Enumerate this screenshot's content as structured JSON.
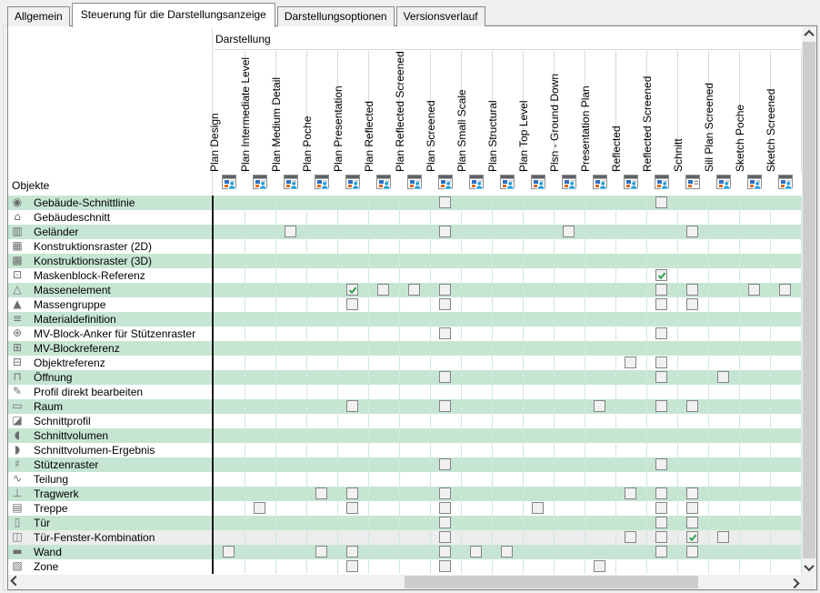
{
  "tabs": [
    {
      "label": "Allgemein",
      "active": false
    },
    {
      "label": "Steuerung für die Darstellungsanzeige",
      "active": true
    },
    {
      "label": "Darstellungsoptionen",
      "active": false
    },
    {
      "label": "Versionsverlauf",
      "active": false
    }
  ],
  "table": {
    "group_label": "Darstellung",
    "objects_label": "Objekte",
    "columns": [
      {
        "label": "Plan Design",
        "icon": "display-representation-icon",
        "has_person": true
      },
      {
        "label": "Plan Intermediate Level",
        "icon": "display-representation-icon",
        "has_person": true
      },
      {
        "label": "Plan Medium Detail",
        "icon": "display-representation-icon",
        "has_person": true
      },
      {
        "label": "Plan Poche",
        "icon": "display-representation-icon",
        "has_person": true
      },
      {
        "label": "Plan Presentation",
        "icon": "display-representation-icon",
        "has_person": true
      },
      {
        "label": "Plan Reflected",
        "icon": "display-representation-icon",
        "has_person": true
      },
      {
        "label": "Plan Reflected Screened",
        "icon": "display-representation-icon",
        "has_person": true
      },
      {
        "label": "Plan Screened",
        "icon": "display-representation-icon",
        "has_person": true
      },
      {
        "label": "Plan Small Scale",
        "icon": "display-representation-icon",
        "has_person": true
      },
      {
        "label": "Plan Structural",
        "icon": "display-representation-icon",
        "has_person": true
      },
      {
        "label": "Plan Top Level",
        "icon": "display-representation-icon",
        "has_person": true
      },
      {
        "label": "Plsn - Ground Down",
        "icon": "display-representation-icon",
        "has_person": true
      },
      {
        "label": "Presentation Plan",
        "icon": "display-representation-icon",
        "has_person": true
      },
      {
        "label": "Reflected",
        "icon": "display-representation-icon",
        "has_person": true
      },
      {
        "label": "Reflected Screened",
        "icon": "display-representation-icon",
        "has_person": true
      },
      {
        "label": "Schnitt",
        "icon": "display-representation-plain-icon",
        "has_person": false
      },
      {
        "label": "Sill Plan Screened",
        "icon": "display-representation-icon",
        "has_person": true
      },
      {
        "label": "Sketch Poche",
        "icon": "display-representation-icon",
        "has_person": true
      },
      {
        "label": "Sketch Screened",
        "icon": "display-representation-icon",
        "has_person": true
      }
    ],
    "rows": [
      {
        "label": "Gebäude-Schnittlinie",
        "icon": "building-section-line-icon",
        "glyph": "◉",
        "cells": [
          {
            "col": 8,
            "checked": false
          },
          {
            "col": 15,
            "checked": false
          }
        ]
      },
      {
        "label": "Gebäudeschnitt",
        "icon": "building-section-icon",
        "glyph": "⌂",
        "cells": []
      },
      {
        "label": "Geländer",
        "icon": "railing-icon",
        "glyph": "▥",
        "cells": [
          {
            "col": 3,
            "checked": false
          },
          {
            "col": 8,
            "checked": false
          },
          {
            "col": 12,
            "checked": false
          },
          {
            "col": 16,
            "checked": false
          }
        ]
      },
      {
        "label": "Konstruktionsraster (2D)",
        "icon": "construction-grid-2d-icon",
        "glyph": "▦",
        "cells": []
      },
      {
        "label": "Konstruktionsraster (3D)",
        "icon": "construction-grid-3d-icon",
        "glyph": "▩",
        "cells": []
      },
      {
        "label": "Maskenblock-Referenz",
        "icon": "mask-block-reference-icon",
        "glyph": "⊡",
        "cells": [
          {
            "col": 15,
            "checked": true
          }
        ]
      },
      {
        "label": "Massenelement",
        "icon": "mass-element-icon",
        "glyph": "△",
        "cells": [
          {
            "col": 5,
            "checked": true
          },
          {
            "col": 6,
            "checked": false
          },
          {
            "col": 7,
            "checked": false
          },
          {
            "col": 8,
            "checked": false
          },
          {
            "col": 15,
            "checked": false
          },
          {
            "col": 16,
            "checked": false
          },
          {
            "col": 18,
            "checked": false
          },
          {
            "col": 19,
            "checked": false
          }
        ]
      },
      {
        "label": "Massengruppe",
        "icon": "mass-group-icon",
        "glyph": "▲",
        "cells": [
          {
            "col": 5,
            "checked": false
          },
          {
            "col": 8,
            "checked": false
          },
          {
            "col": 15,
            "checked": false
          },
          {
            "col": 16,
            "checked": false
          }
        ]
      },
      {
        "label": "Materialdefinition",
        "icon": "material-definition-icon",
        "glyph": "≡",
        "cells": []
      },
      {
        "label": "MV-Block-Anker für Stützenraster",
        "icon": "mv-block-anchor-icon",
        "glyph": "⊕",
        "cells": [
          {
            "col": 8,
            "checked": false
          },
          {
            "col": 15,
            "checked": false
          }
        ]
      },
      {
        "label": "MV-Blockreferenz",
        "icon": "mv-block-reference-icon",
        "glyph": "⊞",
        "cells": []
      },
      {
        "label": "Objektreferenz",
        "icon": "object-reference-icon",
        "glyph": "⊟",
        "cells": [
          {
            "col": 14,
            "checked": false
          },
          {
            "col": 15,
            "checked": false
          }
        ]
      },
      {
        "label": "Öffnung",
        "icon": "opening-icon",
        "glyph": "⊓",
        "cells": [
          {
            "col": 8,
            "checked": false
          },
          {
            "col": 15,
            "checked": false
          },
          {
            "col": 17,
            "checked": false
          }
        ]
      },
      {
        "label": "Profil direkt bearbeiten",
        "icon": "profile-edit-icon",
        "glyph": "✎",
        "cells": []
      },
      {
        "label": "Raum",
        "icon": "room-icon",
        "glyph": "▭",
        "cells": [
          {
            "col": 5,
            "checked": false
          },
          {
            "col": 8,
            "checked": false
          },
          {
            "col": 13,
            "checked": false
          },
          {
            "col": 15,
            "checked": false
          },
          {
            "col": 16,
            "checked": false
          }
        ]
      },
      {
        "label": "Schnittprofil",
        "icon": "section-profile-icon",
        "glyph": "◪",
        "cells": []
      },
      {
        "label": "Schnittvolumen",
        "icon": "section-volume-icon",
        "glyph": "◖",
        "cells": []
      },
      {
        "label": "Schnittvolumen-Ergebnis",
        "icon": "section-volume-result-icon",
        "glyph": "◗",
        "cells": []
      },
      {
        "label": "Stützenraster",
        "icon": "column-grid-icon",
        "glyph": "♯",
        "cells": [
          {
            "col": 8,
            "checked": false
          },
          {
            "col": 15,
            "checked": false
          }
        ]
      },
      {
        "label": "Teilung",
        "icon": "division-icon",
        "glyph": "∿",
        "cells": []
      },
      {
        "label": "Tragwerk",
        "icon": "structural-member-icon",
        "glyph": "⊥",
        "cells": [
          {
            "col": 4,
            "checked": false
          },
          {
            "col": 5,
            "checked": false
          },
          {
            "col": 8,
            "checked": false
          },
          {
            "col": 14,
            "checked": false
          },
          {
            "col": 15,
            "checked": false
          },
          {
            "col": 16,
            "checked": false
          }
        ]
      },
      {
        "label": "Treppe",
        "icon": "stair-icon",
        "glyph": "▤",
        "cells": [
          {
            "col": 2,
            "checked": false
          },
          {
            "col": 5,
            "checked": false
          },
          {
            "col": 8,
            "checked": false
          },
          {
            "col": 11,
            "checked": false
          },
          {
            "col": 15,
            "checked": false
          },
          {
            "col": 16,
            "checked": false
          }
        ]
      },
      {
        "label": "Tür",
        "icon": "door-icon",
        "glyph": "▯",
        "cells": [
          {
            "col": 8,
            "checked": false
          },
          {
            "col": 15,
            "checked": false
          },
          {
            "col": 16,
            "checked": false
          }
        ]
      },
      {
        "label": "Tür-Fenster-Kombination",
        "icon": "door-window-assembly-icon",
        "glyph": "◫",
        "highlight": true,
        "cells": [
          {
            "col": 8,
            "checked": false
          },
          {
            "col": 14,
            "checked": false
          },
          {
            "col": 15,
            "checked": false
          },
          {
            "col": 16,
            "checked": true
          },
          {
            "col": 17,
            "checked": false
          }
        ]
      },
      {
        "label": "Wand",
        "icon": "wall-icon",
        "glyph": "▬",
        "cells": [
          {
            "col": 1,
            "checked": false
          },
          {
            "col": 4,
            "checked": false
          },
          {
            "col": 5,
            "checked": false
          },
          {
            "col": 8,
            "checked": false
          },
          {
            "col": 9,
            "checked": false
          },
          {
            "col": 10,
            "checked": false
          },
          {
            "col": 15,
            "checked": false
          },
          {
            "col": 16,
            "checked": false
          }
        ]
      },
      {
        "label": "Zone",
        "icon": "zone-icon",
        "glyph": "▨",
        "cells": [
          {
            "col": 5,
            "checked": false
          },
          {
            "col": 8,
            "checked": false
          },
          {
            "col": 13,
            "checked": false
          }
        ]
      }
    ]
  },
  "colors": {
    "stripe_green": "#c6e6d3",
    "grid_line": "#cfe9db",
    "highlight_row": "#ededed",
    "check_green": "#2ea44f",
    "panel_border": "#828790",
    "scroll_thumb": "#cdcdcd"
  }
}
